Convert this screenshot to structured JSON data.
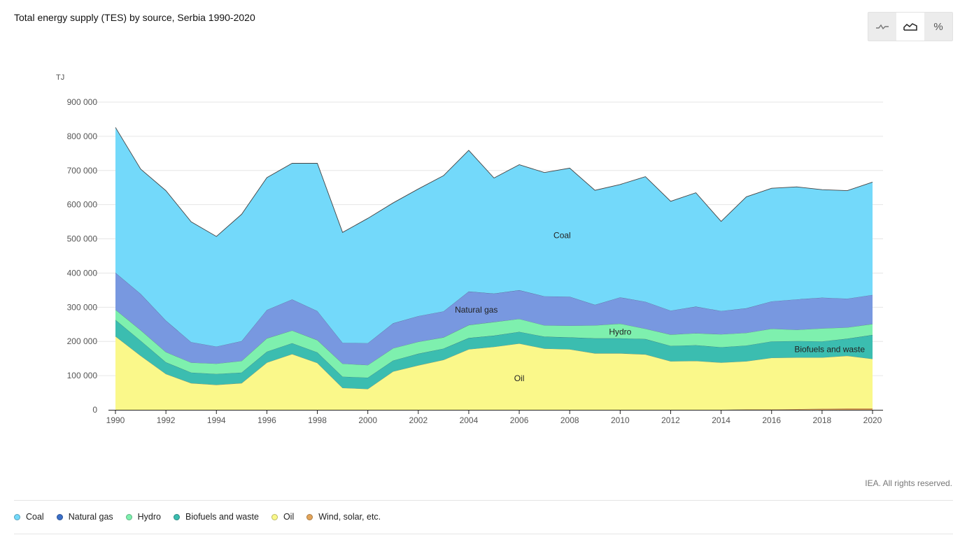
{
  "title": "Total energy supply (TES) by source, Serbia 1990-2020",
  "toggles": [
    {
      "icon": "line-chart-icon",
      "active": false
    },
    {
      "icon": "area-chart-icon",
      "active": true
    },
    {
      "icon": "percent-icon",
      "label": "%",
      "active": false
    }
  ],
  "copyright": "IEA. All rights reserved.",
  "chart_data": {
    "type": "area",
    "stacked": true,
    "unit": "TJ",
    "x": [
      1990,
      1991,
      1992,
      1993,
      1994,
      1995,
      1996,
      1997,
      1998,
      1999,
      2000,
      2001,
      2002,
      2003,
      2004,
      2005,
      2006,
      2007,
      2008,
      2009,
      2010,
      2011,
      2012,
      2013,
      2014,
      2015,
      2016,
      2017,
      2018,
      2019,
      2020
    ],
    "x_ticks": [
      "1990",
      "1992",
      "1994",
      "1996",
      "1998",
      "2000",
      "2002",
      "2004",
      "2006",
      "2008",
      "2010",
      "2012",
      "2014",
      "2016",
      "2018",
      "2020"
    ],
    "y_ticks": [
      "0",
      "100 000",
      "200 000",
      "300 000",
      "400 000",
      "500 000",
      "600 000",
      "700 000",
      "800 000",
      "900 000"
    ],
    "ylim": [
      0,
      900000
    ],
    "grid": true,
    "legend_position": "bottom",
    "series": [
      {
        "name": "Wind, solar, etc.",
        "color": "#e3a55a",
        "values": [
          0,
          0,
          0,
          0,
          0,
          0,
          0,
          0,
          0,
          0,
          0,
          0,
          0,
          0,
          0,
          0,
          0,
          0,
          0,
          0,
          0,
          0,
          0,
          0,
          0,
          1000,
          1000,
          2000,
          3000,
          4000,
          4000
        ]
      },
      {
        "name": "Oil",
        "color": "#faf88a",
        "values": [
          215000,
          158000,
          105000,
          78000,
          73000,
          78000,
          138000,
          163000,
          137000,
          64000,
          61000,
          112000,
          130000,
          146000,
          177000,
          184000,
          194000,
          179000,
          177000,
          165000,
          165000,
          162000,
          142000,
          143000,
          138000,
          141000,
          151000,
          151000,
          150000,
          154000,
          145000
        ]
      },
      {
        "name": "Biofuels and waste",
        "color": "#3bbdb0",
        "values": [
          48000,
          44000,
          34000,
          31000,
          32000,
          31000,
          32000,
          32000,
          31000,
          33000,
          33000,
          32000,
          34000,
          33000,
          33000,
          33000,
          34000,
          35000,
          35000,
          44000,
          44000,
          45000,
          45000,
          46000,
          45000,
          46000,
          48000,
          48000,
          47000,
          50000,
          70000
        ]
      },
      {
        "name": "Hydro",
        "color": "#7ef0ae",
        "values": [
          30000,
          31000,
          30000,
          29000,
          30000,
          34000,
          39000,
          37000,
          36000,
          38000,
          37000,
          36000,
          35000,
          33000,
          38000,
          40000,
          38000,
          33000,
          34000,
          38000,
          43000,
          30000,
          33000,
          35000,
          38000,
          37000,
          37000,
          33000,
          38000,
          33000,
          32000
        ]
      },
      {
        "name": "Natural gas",
        "color": "#7898e0",
        "values": [
          108000,
          106000,
          92000,
          60000,
          50000,
          58000,
          83000,
          91000,
          85000,
          61000,
          64000,
          73000,
          75000,
          76000,
          98000,
          83000,
          84000,
          85000,
          85000,
          60000,
          77000,
          79000,
          70000,
          78000,
          68000,
          72000,
          80000,
          89000,
          90000,
          84000,
          85000
        ]
      },
      {
        "name": "Coal",
        "color": "#73d9fa",
        "values": [
          425000,
          365000,
          380000,
          352000,
          322000,
          371000,
          387000,
          398000,
          432000,
          323000,
          365000,
          352000,
          372000,
          397000,
          413000,
          338000,
          367000,
          362000,
          376000,
          335000,
          330000,
          366000,
          320000,
          333000,
          262000,
          326000,
          331000,
          329000,
          316000,
          316000,
          330000
        ]
      }
    ],
    "series_labels": [
      {
        "series": "Coal",
        "text": "Coal",
        "at_x": 2007.7,
        "at_y": 510000
      },
      {
        "series": "Natural gas",
        "text": "Natural gas",
        "at_x": 2004.3,
        "at_y": 293000
      },
      {
        "series": "Hydro",
        "text": "Hydro",
        "at_x": 2010,
        "at_y": 228000
      },
      {
        "series": "Biofuels and waste",
        "text": "Biofuels and waste",
        "at_x": 2018.3,
        "at_y": 177000
      },
      {
        "series": "Oil",
        "text": "Oil",
        "at_x": 2006,
        "at_y": 92000
      }
    ]
  },
  "legend": [
    {
      "label": "Coal",
      "color": "#73d9fa"
    },
    {
      "label": "Natural gas",
      "color": "#3b6fc8"
    },
    {
      "label": "Hydro",
      "color": "#7ef0ae"
    },
    {
      "label": "Biofuels and waste",
      "color": "#3bbdb0"
    },
    {
      "label": "Oil",
      "color": "#faf88a"
    },
    {
      "label": "Wind, solar, etc.",
      "color": "#e3a55a"
    }
  ]
}
